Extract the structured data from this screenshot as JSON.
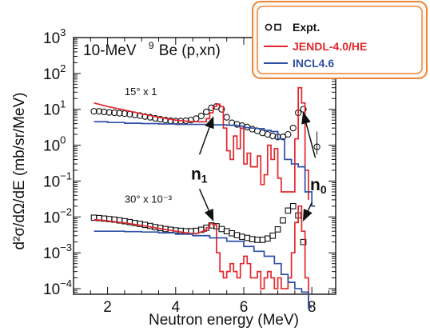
{
  "chart_data": {
    "type": "line",
    "title": "10-MeV",
    "title_nucleus": "Be (p,xn)",
    "title_mass": "9",
    "xlabel": "Neutron energy (MeV)",
    "ylabel": "d²σ/dΩ/dE (mb/sr/MeV)",
    "xlim": [
      1,
      8.7
    ],
    "xscale": "linear",
    "xticks": [
      2,
      4,
      6,
      8
    ],
    "yscale": "log",
    "ylim": [
      7e-05,
      1000
    ],
    "yticks": [
      {
        "value": 1000,
        "base": "10",
        "exp": "3"
      },
      {
        "value": 100,
        "base": "10",
        "exp": "2"
      },
      {
        "value": 10,
        "base": "10",
        "exp": "1"
      },
      {
        "value": 1,
        "base": "10",
        "exp": "0"
      },
      {
        "value": 0.1,
        "base": "10",
        "exp": "−1"
      },
      {
        "value": 0.01,
        "base": "10",
        "exp": "−2"
      },
      {
        "value": 0.001,
        "base": "10",
        "exp": "−3"
      },
      {
        "value": 0.0001,
        "base": "10",
        "exp": "−4"
      }
    ],
    "legend": {
      "position": "top-right",
      "entries": [
        {
          "name": "Expt.",
          "color": "#111111",
          "marker": "circle-square"
        },
        {
          "name": "JENDL-4.0/HE",
          "color": "#e4262c",
          "marker": "line"
        },
        {
          "name": "INCL4.6",
          "color": "#2e4fa8",
          "marker": "line"
        }
      ],
      "border_color": "#e8873a"
    },
    "annotations": [
      {
        "text": "15° x 1",
        "x": 2.5,
        "y": 25
      },
      {
        "text": "30° x 10⁻³",
        "x": 2.5,
        "y": 0.025
      },
      {
        "label": "n",
        "sub": "1",
        "x": 4.45,
        "y": 0.11
      },
      {
        "label": "n",
        "sub": "0",
        "x": 7.95,
        "y": 0.055
      }
    ],
    "series": [
      {
        "name": "Expt.",
        "angle": "15°",
        "marker": "circle",
        "color": "#111111",
        "x": [
          1.6,
          1.75,
          1.9,
          2.05,
          2.2,
          2.35,
          2.5,
          2.65,
          2.8,
          2.95,
          3.1,
          3.25,
          3.4,
          3.55,
          3.7,
          3.85,
          4.0,
          4.15,
          4.3,
          4.45,
          4.6,
          4.75,
          4.9,
          5.05,
          5.2,
          5.35,
          5.5,
          5.65,
          5.8,
          5.95,
          6.1,
          6.25,
          6.4,
          6.55,
          6.7,
          6.85,
          7.0,
          7.15,
          7.3,
          7.45,
          7.6,
          7.75,
          8.15
        ],
        "y": [
          8.8,
          8.8,
          8.5,
          8.2,
          8.0,
          7.8,
          7.6,
          7.3,
          7.0,
          6.7,
          6.3,
          6.0,
          5.6,
          5.3,
          5.0,
          4.8,
          4.7,
          4.7,
          4.8,
          5.0,
          5.5,
          6.5,
          8.5,
          11,
          12,
          10,
          6,
          4.2,
          3.8,
          3.5,
          3.2,
          2.8,
          2.5,
          2.2,
          2.0,
          1.8,
          1.7,
          1.7,
          2.0,
          3.0,
          8,
          10,
          0.9
        ],
        "yerr_low": [
          0,
          0,
          0,
          0,
          0,
          0,
          0,
          0,
          0,
          0,
          0,
          0,
          0,
          0,
          0,
          0,
          0,
          0,
          0,
          0,
          0,
          0,
          0,
          0,
          0,
          0,
          0,
          0,
          0,
          0,
          0,
          0,
          0,
          0,
          0,
          0,
          0,
          0,
          0,
          0,
          0,
          0,
          0.35
        ],
        "yerr_high": [
          0,
          0,
          0,
          0,
          0,
          0,
          0,
          0,
          0,
          0,
          0,
          0,
          0,
          0,
          0,
          0,
          0,
          0,
          0,
          0,
          0,
          0,
          0,
          0,
          0,
          0,
          0,
          0,
          0,
          0,
          0,
          0,
          0,
          0,
          0,
          0,
          0,
          0,
          0,
          0,
          0,
          0,
          1.5
        ]
      },
      {
        "name": "Expt.",
        "angle": "30° x 10⁻³",
        "marker": "square",
        "color": "#111111",
        "x": [
          1.6,
          1.75,
          1.9,
          2.05,
          2.2,
          2.35,
          2.5,
          2.65,
          2.8,
          2.95,
          3.1,
          3.25,
          3.4,
          3.55,
          3.7,
          3.85,
          4.0,
          4.15,
          4.3,
          4.45,
          4.6,
          4.75,
          4.9,
          5.05,
          5.2,
          5.35,
          5.5,
          5.65,
          5.8,
          5.95,
          6.1,
          6.25,
          6.4,
          6.55,
          6.7,
          6.85,
          7.0,
          7.15,
          7.3,
          7.45,
          7.6,
          7.75
        ],
        "y": [
          0.0095,
          0.0093,
          0.009,
          0.0087,
          0.0084,
          0.008,
          0.0076,
          0.0072,
          0.0068,
          0.0064,
          0.006,
          0.0056,
          0.0052,
          0.0049,
          0.0046,
          0.0044,
          0.0042,
          0.0041,
          0.004,
          0.004,
          0.0041,
          0.0044,
          0.005,
          0.0058,
          0.0055,
          0.0046,
          0.004,
          0.0035,
          0.0031,
          0.0028,
          0.0026,
          0.0024,
          0.0023,
          0.0023,
          0.0025,
          0.003,
          0.0045,
          0.008,
          0.015,
          0.02,
          0.011,
          0.002
        ]
      },
      {
        "name": "JENDL-4.0/HE",
        "angle": "15°",
        "color": "#e4262c",
        "style": "smooth-then-step",
        "x": [
          1.6,
          2.0,
          2.5,
          3.0,
          3.5,
          4.0,
          4.4,
          4.7,
          4.9,
          5.0,
          5.1,
          5.2,
          5.3,
          5.4,
          5.5,
          5.6,
          5.7,
          5.8,
          5.9,
          6.0,
          6.1,
          6.2,
          6.3,
          6.4,
          6.5,
          6.6,
          6.7,
          6.8,
          6.9,
          7.0,
          7.1,
          7.2,
          7.3,
          7.4,
          7.5,
          7.6,
          7.7,
          7.8,
          7.9
        ],
        "y": [
          15,
          12,
          9.5,
          7.5,
          6.0,
          5.0,
          4.6,
          4.5,
          5.5,
          8,
          12,
          14,
          12,
          3,
          0.7,
          0.4,
          1.8,
          0.8,
          3,
          0.3,
          0.6,
          0.25,
          0.25,
          0.5,
          0.08,
          0.15,
          1.0,
          0.4,
          0.8,
          0.12,
          0.05,
          0.05,
          0.05,
          0.05,
          1.5,
          40,
          15,
          0.2,
          0.03
        ]
      },
      {
        "name": "INCL4.6",
        "angle": "15°",
        "color": "#2e4fa8",
        "style": "step",
        "x": [
          1.6,
          2.0,
          2.5,
          3.0,
          3.5,
          4.0,
          4.5,
          5.0,
          5.5,
          5.8,
          6.0,
          6.2,
          6.4,
          6.6,
          6.8,
          7.0,
          7.2,
          7.4,
          7.6,
          7.8,
          8.0
        ],
        "y": [
          4.5,
          4.3,
          4.1,
          4.0,
          3.9,
          3.8,
          3.8,
          3.7,
          3.6,
          3.4,
          3.1,
          3.0,
          2.9,
          2.6,
          2.4,
          1.5,
          0.4,
          0.3,
          0.25,
          0.05,
          0.02
        ]
      },
      {
        "name": "JENDL-4.0/HE",
        "angle": "30° x 10⁻³",
        "color": "#e4262c",
        "style": "smooth-then-step",
        "x": [
          1.6,
          2.0,
          2.5,
          3.0,
          3.5,
          4.0,
          4.4,
          4.6,
          4.8,
          4.9,
          5.0,
          5.1,
          5.2,
          5.3,
          5.4,
          5.5,
          5.6,
          5.7,
          5.8,
          5.9,
          6.0,
          6.1,
          6.2,
          6.3,
          6.4,
          6.5,
          6.6,
          6.7,
          6.8,
          6.9,
          7.0,
          7.1,
          7.2,
          7.3,
          7.4,
          7.5,
          7.6,
          7.7,
          7.8,
          7.9
        ],
        "y": [
          0.0085,
          0.0078,
          0.0068,
          0.0058,
          0.0048,
          0.004,
          0.0035,
          0.0034,
          0.004,
          0.005,
          0.0065,
          0.006,
          0.001,
          0.0003,
          0.0002,
          0.0003,
          0.0005,
          0.0003,
          0.0002,
          0.0005,
          0.0008,
          0.0005,
          0.0002,
          0.0002,
          0.0003,
          0.0001,
          0.0002,
          0.0003,
          0.0002,
          0.0001,
          0.0002,
          0.0001,
          0.0001,
          0.0002,
          0.001,
          0.007,
          0.02,
          0.004,
          0.0002,
          3e-05
        ]
      },
      {
        "name": "INCL4.6",
        "angle": "30° x 10⁻³",
        "color": "#2e4fa8",
        "style": "step",
        "x": [
          1.6,
          2.0,
          2.5,
          3.0,
          3.5,
          4.0,
          4.5,
          5.0,
          5.5,
          6.0,
          6.3,
          6.6,
          6.9,
          7.1,
          7.3,
          7.5,
          7.7,
          7.9
        ],
        "y": [
          0.004,
          0.004,
          0.0039,
          0.0038,
          0.0036,
          0.0033,
          0.003,
          0.0026,
          0.0021,
          0.0015,
          0.0011,
          0.0008,
          0.0005,
          0.00025,
          0.00015,
          0.0001,
          8e-05,
          3e-05
        ]
      }
    ]
  }
}
